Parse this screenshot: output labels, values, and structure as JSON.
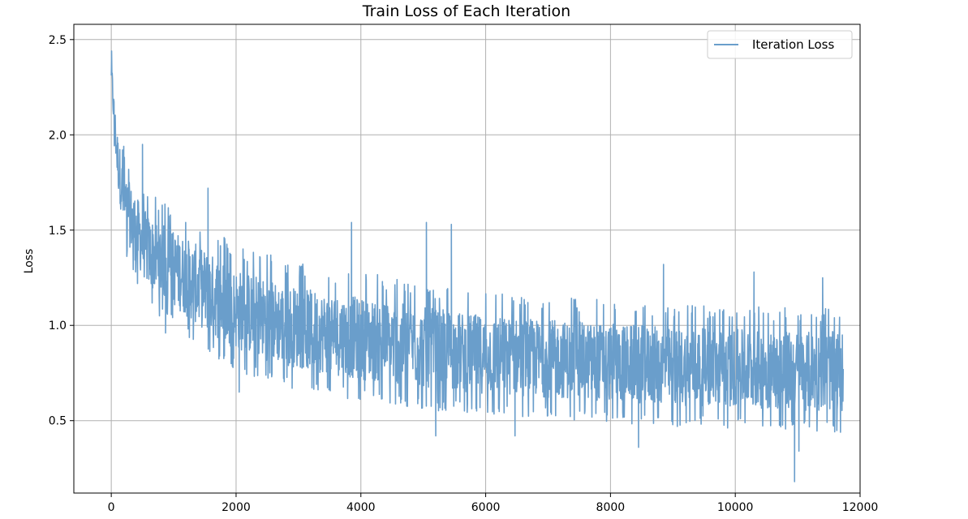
{
  "chart_data": {
    "type": "line",
    "title": "Train Loss of Each Iteration",
    "xlabel": "",
    "ylabel": "Loss",
    "xlim": [
      -600,
      12000
    ],
    "ylim": [
      0.12,
      2.58
    ],
    "xticks": [
      0,
      2000,
      4000,
      6000,
      8000,
      10000,
      12000
    ],
    "yticks": [
      0.5,
      1.0,
      1.5,
      2.0,
      2.5
    ],
    "xtick_labels": [
      "0",
      "2000",
      "4000",
      "6000",
      "8000",
      "10000",
      "12000"
    ],
    "ytick_labels": [
      "0.5",
      "1.0",
      "1.5",
      "2.0",
      "2.5"
    ],
    "grid": true,
    "legend_position": "top-right",
    "series": [
      {
        "name": "Iteration Loss",
        "color": "#6a9ecb",
        "x_range": [
          0,
          11730
        ],
        "envelope": {
          "x": [
            0,
            50,
            100,
            200,
            400,
            600,
            1000,
            1500,
            2000,
            2500,
            3000,
            4000,
            5000,
            6000,
            7000,
            8000,
            9000,
            10000,
            11000,
            11730
          ],
          "low": [
            2.25,
            1.95,
            1.7,
            1.45,
            1.28,
            1.15,
            1.05,
            0.92,
            0.82,
            0.76,
            0.72,
            0.66,
            0.62,
            0.59,
            0.57,
            0.55,
            0.53,
            0.52,
            0.5,
            0.5
          ],
          "high": [
            2.43,
            2.2,
            2.05,
            1.85,
            1.72,
            1.62,
            1.55,
            1.45,
            1.35,
            1.3,
            1.25,
            1.2,
            1.15,
            1.1,
            1.08,
            1.06,
            1.04,
            1.03,
            1.02,
            1.02
          ]
        },
        "spikes": [
          {
            "x": 5,
            "y": 2.44
          },
          {
            "x": 200,
            "y": 1.94
          },
          {
            "x": 500,
            "y": 1.95
          },
          {
            "x": 1550,
            "y": 1.72
          },
          {
            "x": 3850,
            "y": 1.54
          },
          {
            "x": 5050,
            "y": 1.54
          },
          {
            "x": 5450,
            "y": 1.53
          },
          {
            "x": 8850,
            "y": 1.32
          },
          {
            "x": 11400,
            "y": 1.25
          },
          {
            "x": 10300,
            "y": 1.28
          },
          {
            "x": 870,
            "y": 0.96
          },
          {
            "x": 2050,
            "y": 0.65
          },
          {
            "x": 5200,
            "y": 0.42
          },
          {
            "x": 6470,
            "y": 0.42
          },
          {
            "x": 8450,
            "y": 0.36
          },
          {
            "x": 10950,
            "y": 0.18
          },
          {
            "x": 11020,
            "y": 0.34
          }
        ]
      }
    ]
  }
}
